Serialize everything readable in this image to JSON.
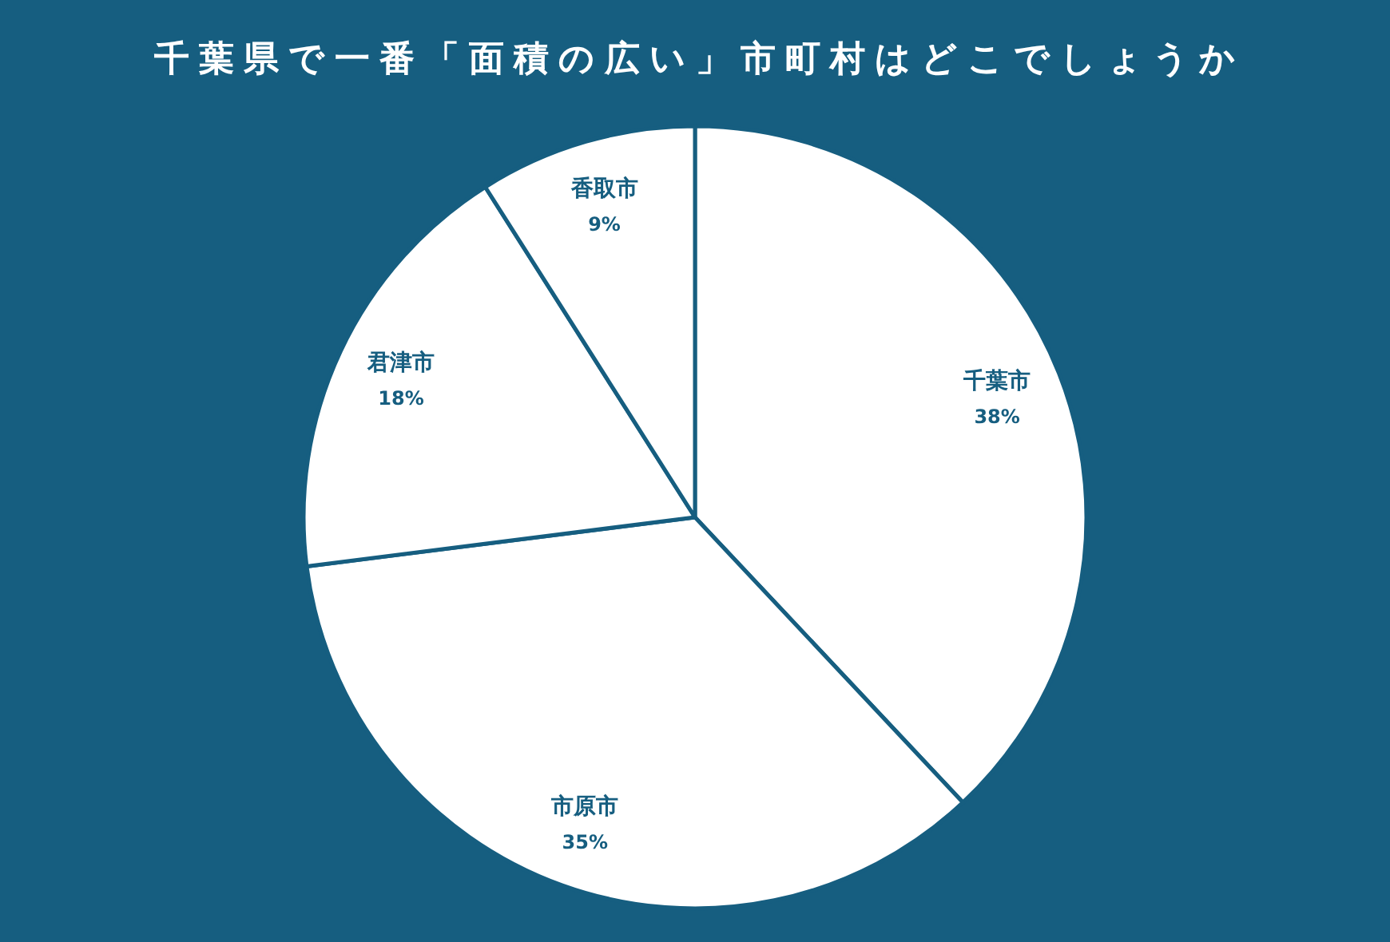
{
  "chart_data": {
    "type": "pie",
    "title": "千葉県で一番「面積の広い」市町村はどこでしょうか",
    "categories": [
      "千葉市",
      "市原市",
      "君津市",
      "香取市"
    ],
    "values": [
      38,
      35,
      18,
      9
    ],
    "value_labels": [
      "38%",
      "35%",
      "18%",
      "9%"
    ],
    "colors": [
      "#ffffff",
      "#ffffff",
      "#ffffff",
      "#ffffff"
    ]
  }
}
